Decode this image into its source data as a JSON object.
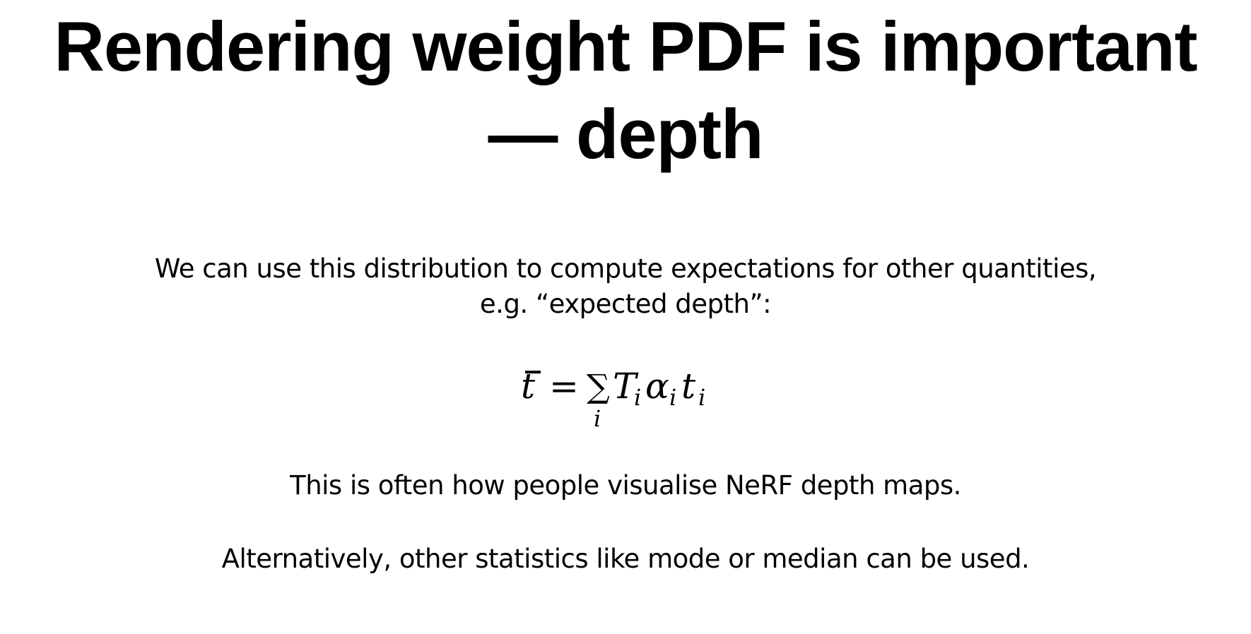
{
  "slide": {
    "title_line1": "Rendering weight PDF is important",
    "title_line2": "— depth",
    "intro_line1": "We can use this distribution to compute expectations for other quantities,",
    "intro_line2": "e.g. “expected depth”:",
    "formula": {
      "lhs": "t",
      "equals": "=",
      "sum": "∑",
      "sum_index": "i",
      "T": "T",
      "T_sub": "i",
      "alpha": "α",
      "alpha_sub": "i",
      "t": "t",
      "t_sub": "i"
    },
    "visualise_text": "This is often how people visualise NeRF depth maps.",
    "alternative_text": "Alternatively, other statistics like mode or median can be used."
  }
}
